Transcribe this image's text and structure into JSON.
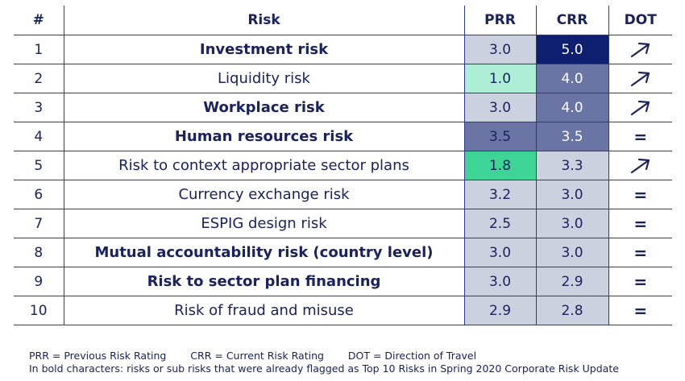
{
  "header": {
    "num": "#",
    "risk": "Risk",
    "prr": "PRR",
    "crr": "CRR",
    "dot": "DOT"
  },
  "rows": [
    {
      "num": "1",
      "risk": "Investment risk",
      "bold": true,
      "prr": "3.0",
      "crr": "5.0",
      "prr_color": "#ccd1e0",
      "crr_color": "#0d1f6e",
      "dot": "up-right-arrow-icon"
    },
    {
      "num": "2",
      "risk": "Liquidity risk",
      "bold": false,
      "prr": "1.0",
      "crr": "4.0",
      "prr_color": "#aeeed6",
      "crr_color": "#6a75a6",
      "dot": "up-right-arrow-icon"
    },
    {
      "num": "3",
      "risk": "Workplace risk",
      "bold": true,
      "prr": "3.0",
      "crr": "4.0",
      "prr_color": "#ccd1e0",
      "crr_color": "#6a75a6",
      "dot": "up-right-arrow-icon"
    },
    {
      "num": "4",
      "risk": "Human resources risk",
      "bold": true,
      "prr": "3.5",
      "crr": "3.5",
      "prr_color": "#6a75a6",
      "crr_color": "#6a75a6",
      "dot": "="
    },
    {
      "num": "5",
      "risk": "Risk to context appropriate sector plans",
      "bold": false,
      "prr": "1.8",
      "crr": "3.3",
      "prr_color": "#3ed496",
      "crr_color": "#ccd1e0",
      "dot": "up-right-arrow-icon"
    },
    {
      "num": "6",
      "risk": "Currency exchange risk",
      "bold": false,
      "prr": "3.2",
      "crr": "3.0",
      "prr_color": "#ccd1e0",
      "crr_color": "#ccd1e0",
      "dot": "="
    },
    {
      "num": "7",
      "risk": "ESPIG design risk",
      "bold": false,
      "prr": "2.5",
      "crr": "3.0",
      "prr_color": "#ccd1e0",
      "crr_color": "#ccd1e0",
      "dot": "="
    },
    {
      "num": "8",
      "risk": "Mutual accountability risk (country level)",
      "bold": true,
      "prr": "3.0",
      "crr": "3.0",
      "prr_color": "#ccd1e0",
      "crr_color": "#ccd1e0",
      "dot": "="
    },
    {
      "num": "9",
      "risk": "Risk to sector plan financing",
      "bold": true,
      "prr": "3.0",
      "crr": "2.9",
      "prr_color": "#ccd1e0",
      "crr_color": "#ccd1e0",
      "dot": "="
    },
    {
      "num": "10",
      "risk": "Risk of fraud and misuse",
      "bold": false,
      "prr": "2.9",
      "crr": "2.8",
      "prr_color": "#ccd1e0",
      "crr_color": "#ccd1e0",
      "dot": "="
    }
  ],
  "footer": {
    "prr_def": "PRR = Previous Risk Rating",
    "crr_def": "CRR = Current Risk Rating",
    "dot_def": "DOT = Direction of Travel",
    "note": "In bold characters: risks or sub risks that were already flagged as Top 10 Risks in Spring 2020 Corporate Risk Update"
  }
}
